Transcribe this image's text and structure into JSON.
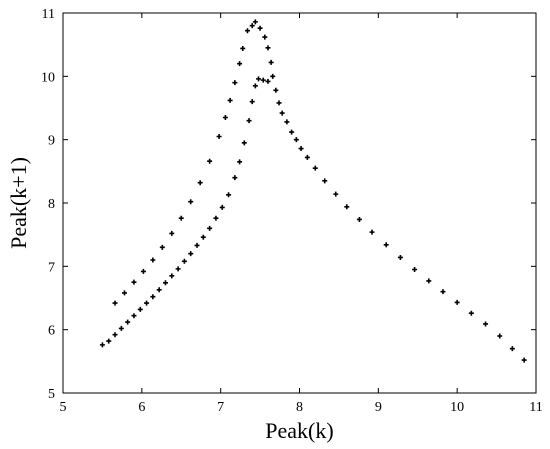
{
  "chart_data": {
    "type": "scatter",
    "title": "",
    "xlabel": "Peak(k)",
    "ylabel": "Peak(k+1)",
    "xlim": [
      5,
      11
    ],
    "ylim": [
      5,
      11
    ],
    "xticks": [
      "5",
      "6",
      "7",
      "8",
      "9",
      "10",
      "11"
    ],
    "yticks": [
      "5",
      "6",
      "7",
      "8",
      "9",
      "10",
      "11"
    ],
    "grid": false,
    "legend": "none",
    "marker": "plus",
    "colors": {
      "marker": "#000000",
      "axis": "#000000",
      "background": "#ffffff"
    },
    "series": [
      {
        "points": [
          [
            5.5,
            5.76
          ],
          [
            5.58,
            5.82
          ],
          [
            5.66,
            5.92
          ],
          [
            5.74,
            6.02
          ],
          [
            5.82,
            6.12
          ],
          [
            5.9,
            6.22
          ],
          [
            5.98,
            6.32
          ],
          [
            6.06,
            6.42
          ],
          [
            6.14,
            6.52
          ],
          [
            6.22,
            6.63
          ],
          [
            6.3,
            6.74
          ],
          [
            6.38,
            6.85
          ],
          [
            6.46,
            6.96
          ],
          [
            6.54,
            7.08
          ],
          [
            6.62,
            7.2
          ],
          [
            6.7,
            7.33
          ],
          [
            6.78,
            7.46
          ],
          [
            6.86,
            7.6
          ],
          [
            6.94,
            7.76
          ],
          [
            7.02,
            7.93
          ],
          [
            7.1,
            8.13
          ],
          [
            7.18,
            8.4
          ],
          [
            7.24,
            8.65
          ],
          [
            7.3,
            8.95
          ],
          [
            7.36,
            9.3
          ],
          [
            7.4,
            9.6
          ],
          [
            7.44,
            9.85
          ],
          [
            7.48,
            9.96
          ],
          [
            7.54,
            9.94
          ],
          [
            7.6,
            9.92
          ]
        ]
      },
      {
        "points": [
          [
            5.66,
            6.42
          ],
          [
            5.78,
            6.58
          ],
          [
            5.9,
            6.75
          ],
          [
            6.02,
            6.92
          ],
          [
            6.14,
            7.1
          ],
          [
            6.26,
            7.3
          ],
          [
            6.38,
            7.52
          ],
          [
            6.5,
            7.76
          ],
          [
            6.62,
            8.02
          ],
          [
            6.74,
            8.32
          ],
          [
            6.86,
            8.66
          ],
          [
            6.98,
            9.05
          ],
          [
            7.06,
            9.35
          ],
          [
            7.12,
            9.62
          ],
          [
            7.18,
            9.9
          ],
          [
            7.24,
            10.2
          ],
          [
            7.28,
            10.44
          ],
          [
            7.34,
            10.72
          ],
          [
            7.4,
            10.8
          ],
          [
            7.44,
            10.86
          ],
          [
            7.5,
            10.76
          ],
          [
            7.56,
            10.62
          ],
          [
            7.6,
            10.45
          ],
          [
            7.64,
            10.22
          ],
          [
            7.66,
            10.0
          ],
          [
            7.7,
            9.78
          ],
          [
            7.74,
            9.58
          ],
          [
            7.78,
            9.42
          ],
          [
            7.84,
            9.28
          ],
          [
            7.9,
            9.12
          ],
          [
            7.96,
            9.0
          ],
          [
            8.02,
            8.86
          ],
          [
            8.1,
            8.72
          ],
          [
            8.2,
            8.55
          ],
          [
            8.32,
            8.35
          ],
          [
            8.46,
            8.14
          ],
          [
            8.6,
            7.94
          ],
          [
            8.76,
            7.74
          ],
          [
            8.92,
            7.54
          ],
          [
            9.1,
            7.34
          ],
          [
            9.28,
            7.14
          ],
          [
            9.46,
            6.95
          ],
          [
            9.64,
            6.77
          ],
          [
            9.82,
            6.6
          ],
          [
            10.0,
            6.43
          ],
          [
            10.18,
            6.26
          ],
          [
            10.36,
            6.09
          ],
          [
            10.54,
            5.9
          ],
          [
            10.7,
            5.7
          ],
          [
            10.85,
            5.52
          ]
        ]
      }
    ]
  }
}
